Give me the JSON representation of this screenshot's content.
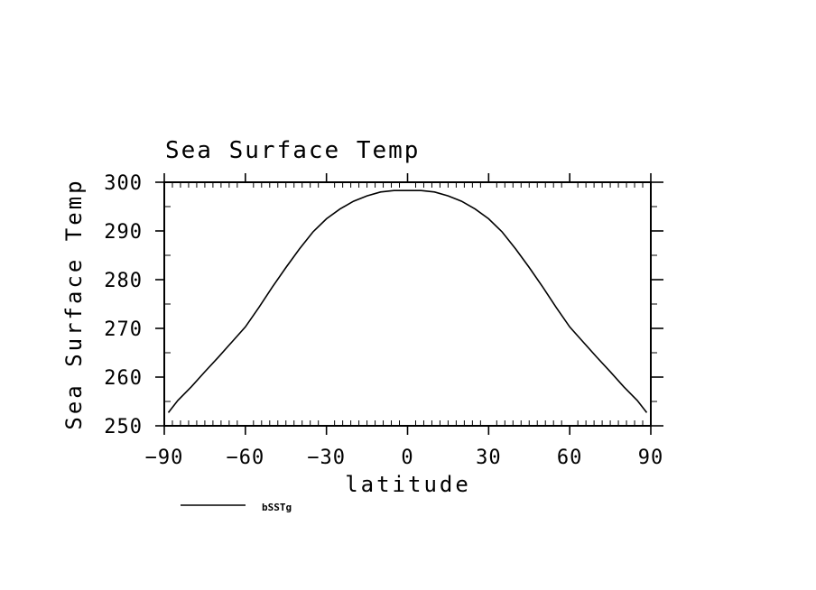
{
  "chart_data": {
    "type": "line",
    "title": "Sea Surface Temp",
    "xlabel": "latitude",
    "ylabel": "Sea Surface Temp",
    "xlim": [
      -90,
      90
    ],
    "ylim": [
      250,
      300
    ],
    "xticks": [
      -90,
      -60,
      -30,
      0,
      30,
      60,
      90
    ],
    "yticks": [
      250,
      260,
      270,
      280,
      290,
      300
    ],
    "xtick_labels": [
      "−90",
      "−60",
      "−30",
      "0",
      "30",
      "60",
      "90"
    ],
    "ytick_labels": [
      "250",
      "260",
      "270",
      "280",
      "290",
      "300"
    ],
    "grid": false,
    "legend_position": "bottom-left",
    "line_color": "#000000",
    "series": [
      {
        "name": "bSSTg",
        "x": [
          -88.5,
          -85,
          -80,
          -75,
          -70,
          -65,
          -60,
          -55,
          -50,
          -45,
          -40,
          -35,
          -30,
          -25,
          -20,
          -15,
          -10,
          -5,
          0,
          5,
          10,
          15,
          20,
          25,
          30,
          35,
          40,
          45,
          50,
          55,
          60,
          65,
          70,
          75,
          80,
          85,
          88.5
        ],
        "y": [
          252.7,
          255.2,
          258.0,
          261.1,
          264.1,
          267.2,
          270.3,
          274.3,
          278.5,
          282.5,
          286.3,
          289.8,
          292.5,
          294.5,
          296.1,
          297.2,
          298.0,
          298.3,
          298.3,
          298.3,
          298.0,
          297.2,
          296.1,
          294.5,
          292.5,
          289.8,
          286.3,
          282.5,
          278.5,
          274.3,
          270.3,
          267.2,
          264.1,
          261.1,
          258.0,
          255.2,
          252.7
        ]
      }
    ]
  }
}
